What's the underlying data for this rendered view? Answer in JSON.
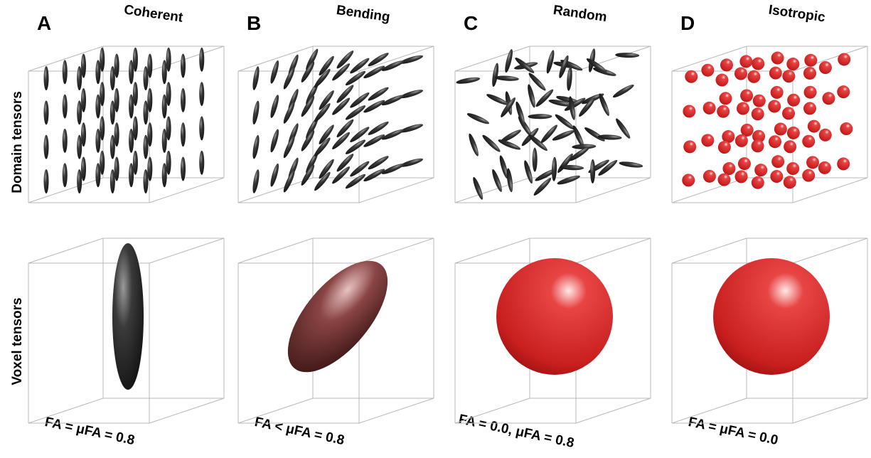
{
  "row_labels": [
    "Domain tensors",
    "Voxel tensors"
  ],
  "panels": [
    {
      "letter": "A",
      "title": "Coherent",
      "caption": "FA = μFA = 0.8"
    },
    {
      "letter": "B",
      "title": "Bending",
      "caption": "FA < μFA = 0.8"
    },
    {
      "letter": "C",
      "title": "Random",
      "caption": "FA = 0.0, μFA = 0.8"
    },
    {
      "letter": "D",
      "title": "Isotropic",
      "caption": "FA = μFA = 0.0"
    }
  ]
}
